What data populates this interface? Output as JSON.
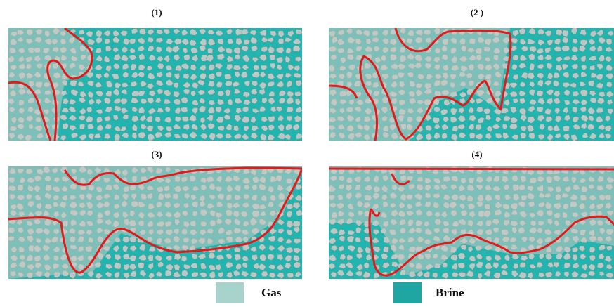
{
  "panels": [
    {
      "label": "(1)"
    },
    {
      "label": "(2 )"
    },
    {
      "label": "(3)"
    },
    {
      "label": "(4)"
    }
  ],
  "legend": {
    "items": [
      {
        "label": "Gas",
        "color": "#a8d3cc"
      },
      {
        "label": "Brine",
        "color": "#1fa6a3"
      }
    ]
  },
  "colors": {
    "front_line": "#e21a1a",
    "brine": "#22b5b0",
    "grain": "#b9c9c6",
    "gas_tint": "#c9c9c2"
  }
}
